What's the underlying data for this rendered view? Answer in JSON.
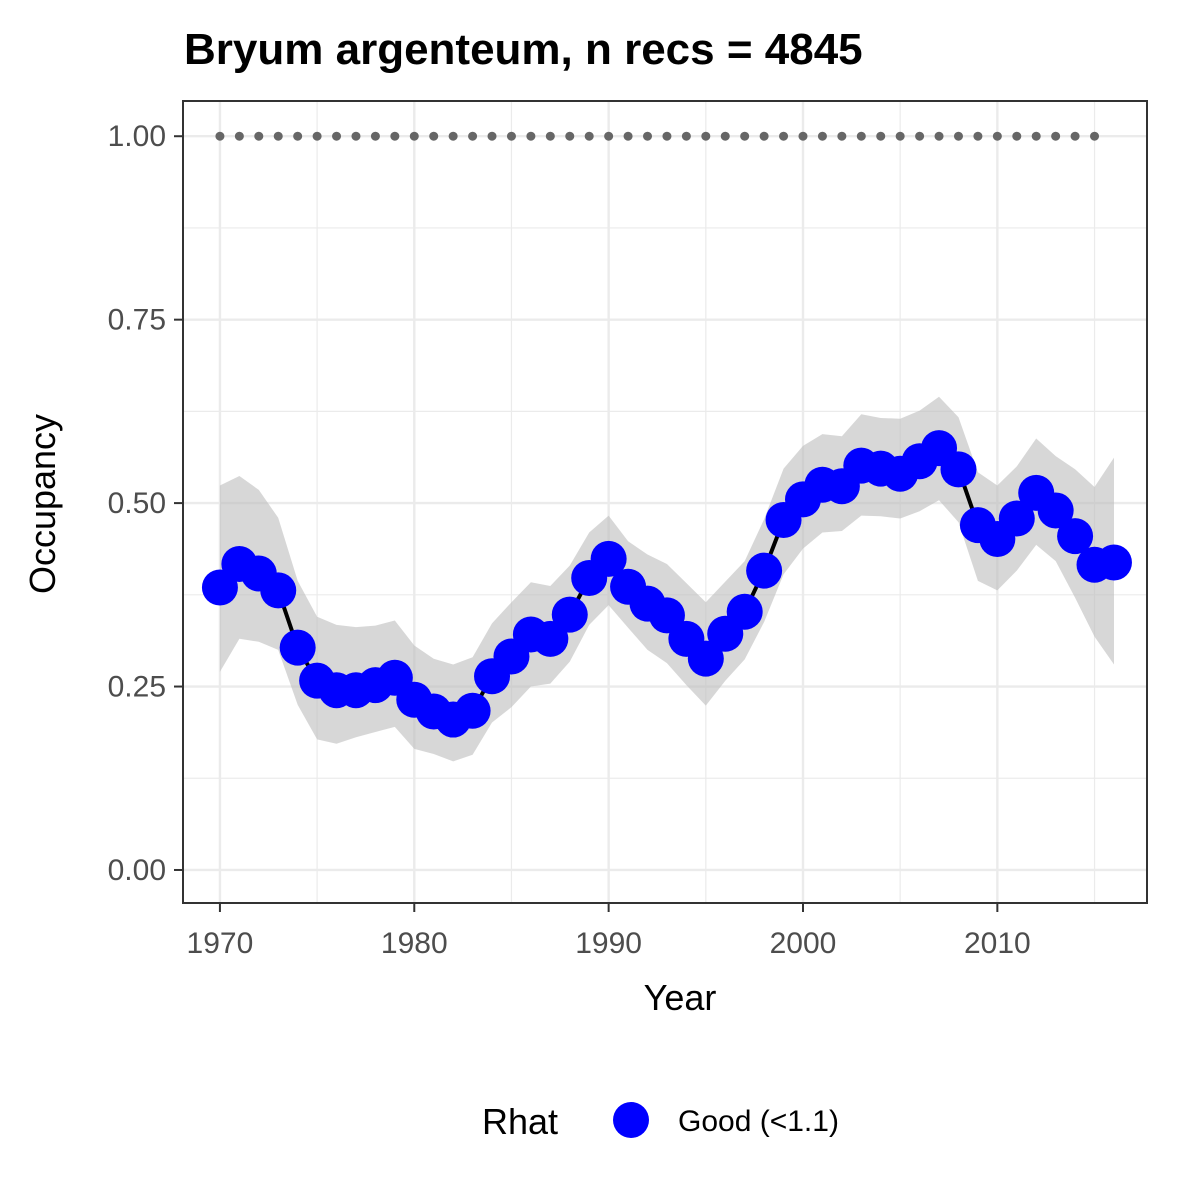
{
  "chart_data": {
    "type": "line",
    "title": "Bryum argenteum, n recs = 4845",
    "xlabel": "Year",
    "ylabel": "Occupancy",
    "xlim": [
      1968.1,
      2017.7
    ],
    "ylim": [
      -0.045,
      1.048
    ],
    "x_ticks": [
      1970,
      1980,
      1990,
      2000,
      2010
    ],
    "x_tick_labels": [
      "1970",
      "1980",
      "1990",
      "2000",
      "2010"
    ],
    "y_ticks": [
      0,
      0.25,
      0.5,
      0.75,
      1.0
    ],
    "y_tick_labels": [
      "0.00",
      "0.25",
      "0.50",
      "0.75",
      "1.00"
    ],
    "grid": true,
    "legend": {
      "position": "bottom",
      "title": "Rhat",
      "entries": [
        {
          "label": "Good (<1.1)",
          "color": "#0000ff"
        }
      ]
    },
    "colors": {
      "points": "#0000ff",
      "line": "#000000",
      "ribbon": "#bfbfbf",
      "reference": "#666666",
      "panel_border": "#333333",
      "grid": "#ebebeb"
    },
    "series": [
      {
        "x": [
          1970,
          1971,
          1972,
          1973,
          1974,
          1975,
          1976,
          1977,
          1978,
          1979,
          1980,
          1981,
          1982,
          1983,
          1984,
          1985,
          1986,
          1987,
          1988,
          1989,
          1990,
          1991,
          1992,
          1993,
          1994,
          1995,
          1996,
          1997,
          1998,
          1999,
          2000,
          2001,
          2002,
          2003,
          2004,
          2005,
          2006,
          2007,
          2008,
          2009,
          2010,
          2011,
          2012,
          2013,
          2014,
          2015,
          2016
        ],
        "values": [
          0.385,
          0.417,
          0.404,
          0.381,
          0.303,
          0.258,
          0.245,
          0.245,
          0.252,
          0.262,
          0.232,
          0.216,
          0.205,
          0.217,
          0.264,
          0.291,
          0.321,
          0.315,
          0.348,
          0.398,
          0.424,
          0.386,
          0.363,
          0.347,
          0.315,
          0.288,
          0.322,
          0.352,
          0.408,
          0.477,
          0.505,
          0.525,
          0.523,
          0.551,
          0.547,
          0.54,
          0.557,
          0.575,
          0.546,
          0.47,
          0.451,
          0.479,
          0.514,
          0.49,
          0.455,
          0.416,
          0.419
        ],
        "lower": [
          0.27,
          0.315,
          0.311,
          0.3,
          0.225,
          0.178,
          0.172,
          0.181,
          0.188,
          0.195,
          0.165,
          0.158,
          0.148,
          0.157,
          0.201,
          0.222,
          0.25,
          0.254,
          0.284,
          0.334,
          0.361,
          0.33,
          0.3,
          0.282,
          0.252,
          0.224,
          0.258,
          0.287,
          0.338,
          0.403,
          0.438,
          0.46,
          0.462,
          0.483,
          0.482,
          0.479,
          0.489,
          0.504,
          0.474,
          0.394,
          0.381,
          0.408,
          0.443,
          0.421,
          0.371,
          0.318,
          0.28
        ],
        "upper": [
          0.524,
          0.537,
          0.518,
          0.48,
          0.394,
          0.345,
          0.334,
          0.331,
          0.333,
          0.34,
          0.306,
          0.288,
          0.28,
          0.29,
          0.336,
          0.365,
          0.392,
          0.387,
          0.415,
          0.46,
          0.483,
          0.448,
          0.43,
          0.417,
          0.391,
          0.365,
          0.393,
          0.421,
          0.478,
          0.547,
          0.578,
          0.594,
          0.591,
          0.621,
          0.616,
          0.615,
          0.626,
          0.645,
          0.617,
          0.542,
          0.524,
          0.55,
          0.588,
          0.564,
          0.546,
          0.522,
          0.562
        ]
      }
    ],
    "reference_line": {
      "x": [
        1970,
        1971,
        1972,
        1973,
        1974,
        1975,
        1976,
        1977,
        1978,
        1979,
        1980,
        1981,
        1982,
        1983,
        1984,
        1985,
        1986,
        1987,
        1988,
        1989,
        1990,
        1991,
        1992,
        1993,
        1994,
        1995,
        1996,
        1997,
        1998,
        1999,
        2000,
        2001,
        2002,
        2003,
        2004,
        2005,
        2006,
        2007,
        2008,
        2009,
        2010,
        2011,
        2012,
        2013,
        2014,
        2015
      ],
      "y": 1.0
    }
  }
}
